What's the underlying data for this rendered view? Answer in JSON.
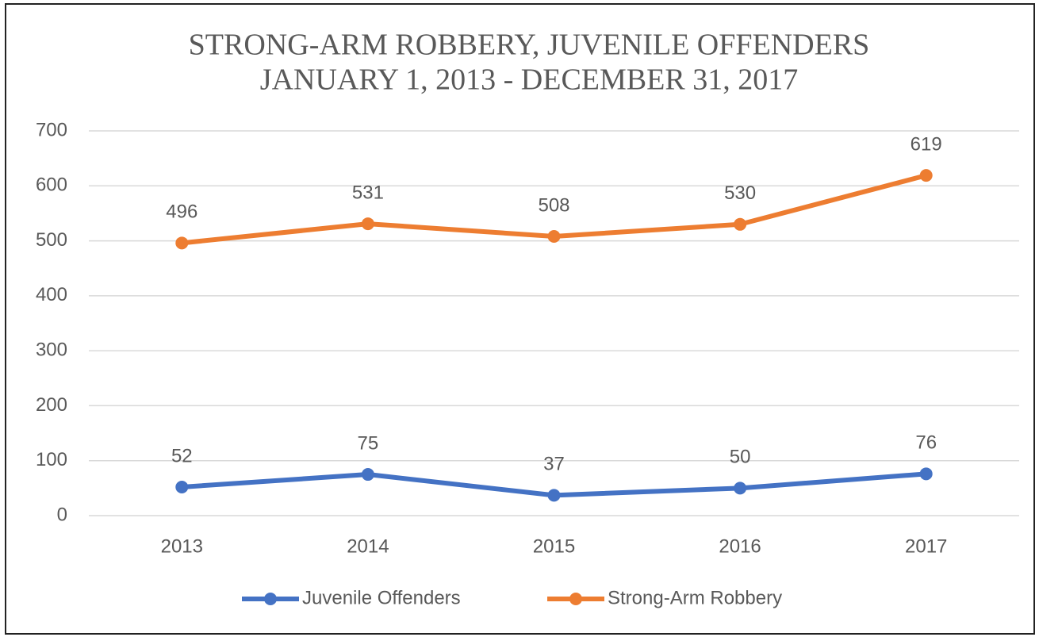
{
  "chart_data": {
    "type": "line",
    "title": "STRONG-ARM ROBBERY, JUVENILE OFFENDERS",
    "subtitle": "JANUARY 1, 2013 - DECEMBER 31, 2017",
    "categories": [
      "2013",
      "2014",
      "2015",
      "2016",
      "2017"
    ],
    "series": [
      {
        "name": "Juvenile Offenders",
        "color": "#4472c4",
        "values": [
          52,
          75,
          37,
          50,
          76
        ]
      },
      {
        "name": "Strong-Arm Robbery",
        "color": "#ed7d31",
        "values": [
          496,
          531,
          508,
          530,
          619
        ]
      }
    ],
    "ylim": [
      0,
      700
    ],
    "yticks": [
      0,
      100,
      200,
      300,
      400,
      500,
      600,
      700
    ],
    "grid": true,
    "legend": "bottom"
  }
}
